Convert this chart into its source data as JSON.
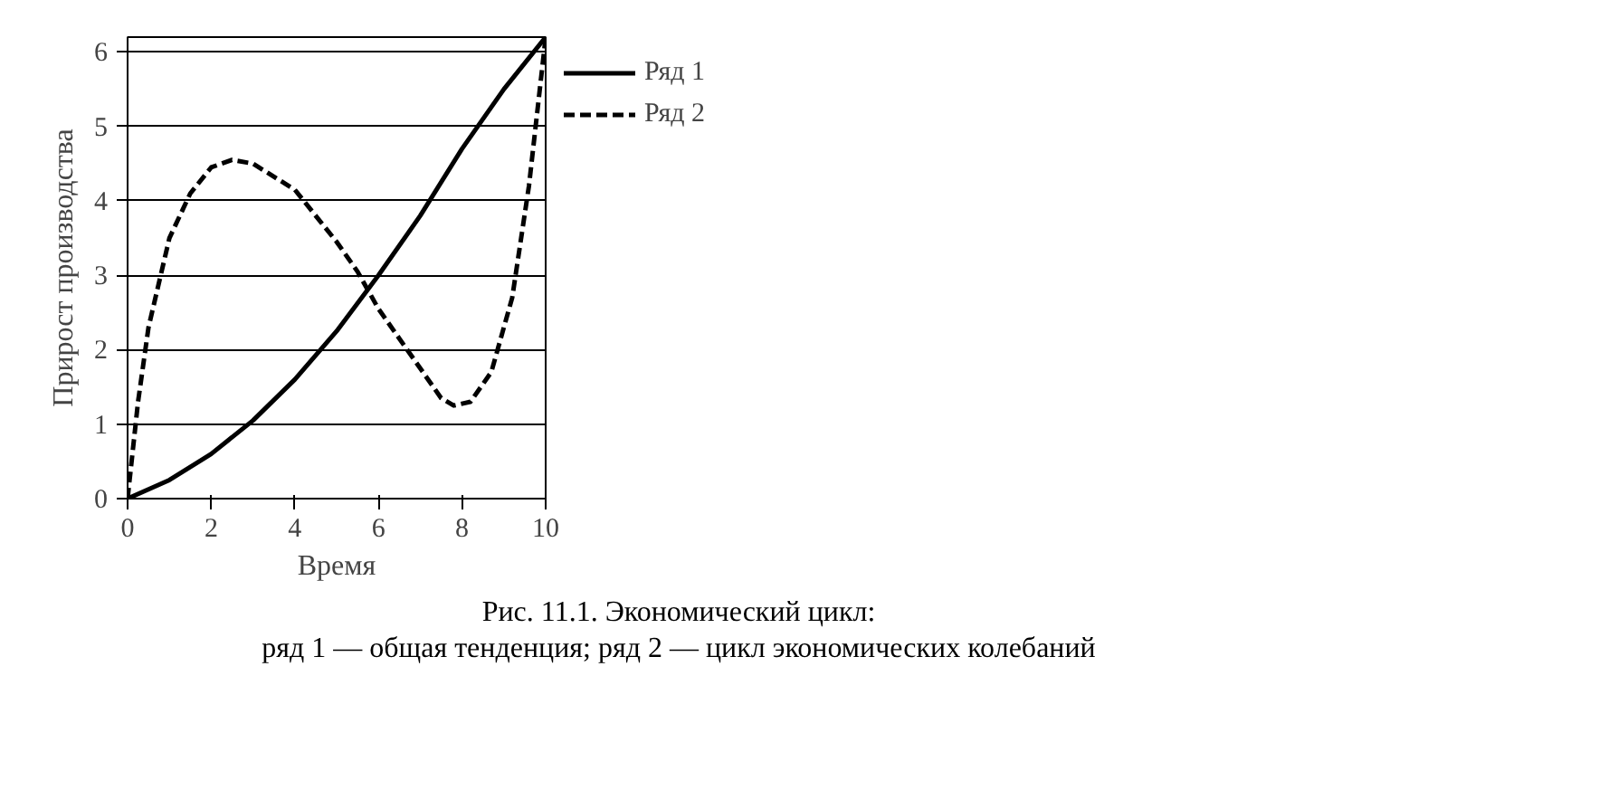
{
  "chart_data": {
    "type": "line",
    "xlabel": "Время",
    "ylabel": "Прирост производства",
    "annotations": [
      "Рис. 11.1. Экономический цикл:",
      "ряд 1 — общая тенденция; ряд 2 — цикл экономических колебаний"
    ],
    "xlim": [
      0,
      10
    ],
    "ylim": [
      0,
      6.2
    ],
    "xticks": [
      0,
      2,
      4,
      6,
      8,
      10
    ],
    "yticks": [
      0,
      1,
      2,
      3,
      4,
      5,
      6
    ],
    "grid": "y",
    "legend": "right",
    "marker": "none",
    "series": [
      {
        "name": "Ряд 1",
        "color": "#000000",
        "line_style": "solid",
        "x": [
          0,
          1,
          2,
          3,
          4,
          5,
          6,
          7,
          8,
          9,
          10
        ],
        "values": [
          0,
          0.25,
          0.6,
          1.05,
          1.6,
          2.25,
          3.0,
          3.8,
          4.7,
          5.5,
          6.2
        ]
      },
      {
        "name": "Ряд 2",
        "color": "#000000",
        "line_style": "dashed",
        "x": [
          0,
          0.25,
          0.5,
          1,
          1.5,
          2,
          2.5,
          3,
          4,
          5,
          5.5,
          6,
          7,
          7.5,
          7.8,
          8.2,
          8.7,
          9.2,
          9.6,
          10
        ],
        "values": [
          0,
          1.3,
          2.3,
          3.5,
          4.1,
          4.45,
          4.55,
          4.5,
          4.15,
          3.45,
          3.05,
          2.55,
          1.75,
          1.35,
          1.25,
          1.3,
          1.7,
          2.7,
          4.2,
          6.2
        ]
      }
    ]
  }
}
